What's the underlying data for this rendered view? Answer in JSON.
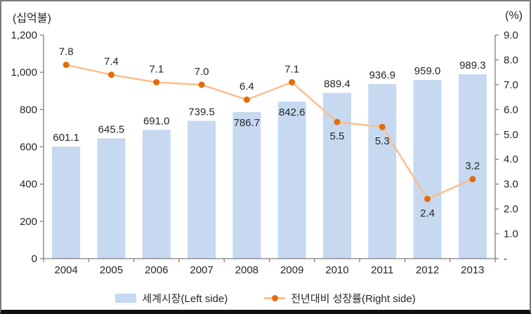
{
  "figure": {
    "left_axis_unit": "(십억불)",
    "right_axis_unit": "(%)"
  },
  "chart_data": {
    "type": "combo",
    "title": "",
    "categories": [
      "2004",
      "2005",
      "2006",
      "2007",
      "2008",
      "2009",
      "2010",
      "2011",
      "2012",
      "2013"
    ],
    "series": [
      {
        "name": "세계시장(Left side)",
        "type": "bar",
        "axis": "left",
        "values": [
          601.1,
          645.5,
          691.0,
          739.5,
          786.7,
          842.6,
          889.4,
          936.9,
          959.0,
          989.3
        ],
        "labels": [
          "601.1",
          "645.5",
          "691.0",
          "739.5",
          "786.7",
          "842.6",
          "889.4",
          "936.9",
          "959.0",
          "989.3"
        ],
        "label_placement": [
          "above",
          "above",
          "above",
          "above",
          "inside",
          "inside",
          "above",
          "above",
          "above",
          "above"
        ]
      },
      {
        "name": "전년대비 성장률(Right side)",
        "type": "line",
        "axis": "right",
        "values": [
          7.8,
          7.4,
          7.1,
          7.0,
          6.4,
          7.1,
          5.5,
          5.3,
          2.4,
          3.2
        ],
        "labels": [
          "7.8",
          "7.4",
          "7.1",
          "7.0",
          "6.4",
          "7.1",
          "5.5",
          "5.3",
          "2.4",
          "3.2"
        ],
        "label_placement": [
          "above",
          "above",
          "above",
          "above",
          "above",
          "above",
          "below",
          "below",
          "below",
          "above"
        ]
      }
    ],
    "left_axis": {
      "min": 0,
      "max": 1200,
      "step": 200,
      "tick_labels": [
        "0",
        "200",
        "400",
        "600",
        "800",
        "1,000",
        "1,200"
      ],
      "unit": "(십억불)"
    },
    "right_axis": {
      "min": 0,
      "max": 9,
      "step": 1,
      "tick_labels": [
        "-",
        "1.0",
        "2.0",
        "3.0",
        "4.0",
        "5.0",
        "6.0",
        "7.0",
        "8.0",
        "9.0"
      ],
      "unit": "(%)"
    },
    "grid": false,
    "legend_position": "bottom"
  },
  "legend": {
    "items": [
      {
        "label": "세계시장(Left side)",
        "swatch": "bar"
      },
      {
        "label": "전년대비 성장률(Right side)",
        "swatch": "line"
      }
    ]
  },
  "colors": {
    "bar_fill": "#C6D9F1",
    "line_stroke": "#FABF8F",
    "marker_fill": "#E46C0A",
    "axis_line": "#7F7F7F",
    "text": "#262626",
    "background": "#FFFFFF",
    "figure_border": "#7A7A7A",
    "bottom_bar": "#111111"
  }
}
